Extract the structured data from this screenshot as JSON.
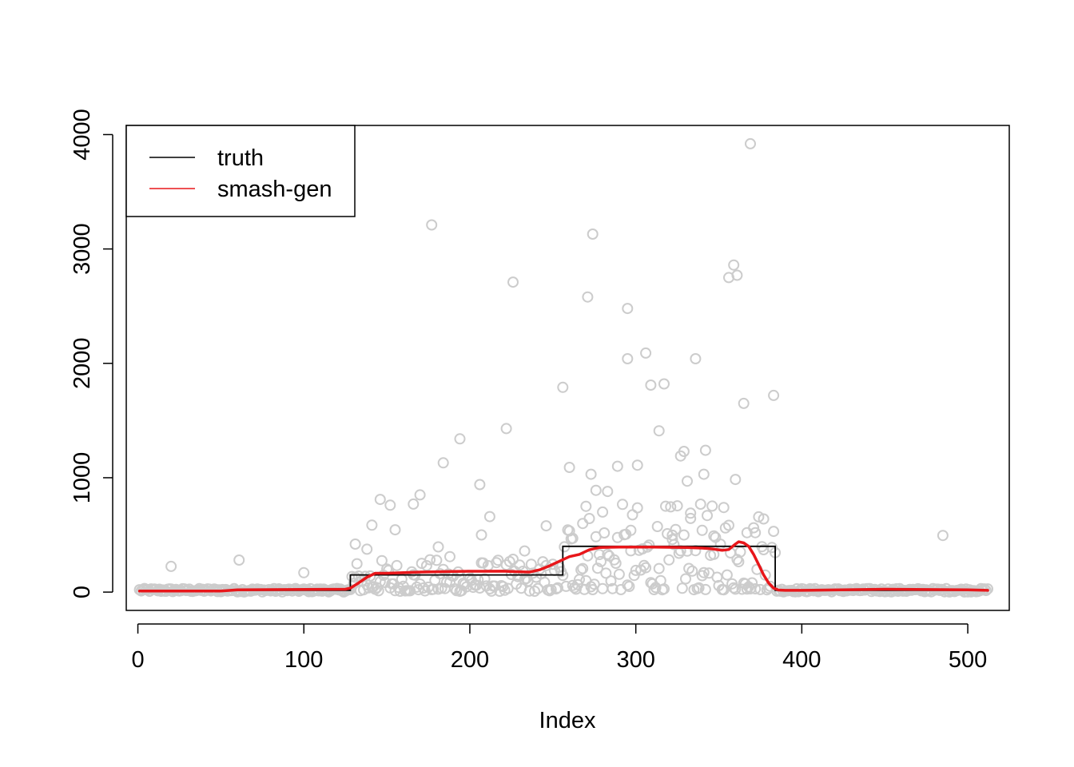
{
  "chart_data": {
    "type": "scatter",
    "title": "",
    "xlabel": "Index",
    "ylabel": "",
    "xlim": [
      -7,
      525
    ],
    "ylim": [
      -160,
      4080
    ],
    "x_ticks": [
      0,
      100,
      200,
      300,
      400,
      500
    ],
    "y_ticks": [
      0,
      1000,
      2000,
      3000,
      4000
    ],
    "x_tick_labels": [
      "0",
      "100",
      "200",
      "300",
      "400",
      "500"
    ],
    "y_tick_labels": [
      "0",
      "1000",
      "2000",
      "3000",
      "4000"
    ],
    "grid": false,
    "legend_position": "top-left",
    "legend": [
      {
        "label": "truth",
        "color": "#000000"
      },
      {
        "label": "smash-gen",
        "color": "#e8161a"
      }
    ],
    "colors": {
      "points": "#cccccc",
      "truth": "#000000",
      "smash": "#e8161a"
    },
    "truth_segments": [
      {
        "x": [
          1,
          128
        ],
        "y": 15
      },
      {
        "x": [
          129,
          256
        ],
        "y": 150
      },
      {
        "x": [
          257,
          384
        ],
        "y": 400
      },
      {
        "x": [
          385,
          512
        ],
        "y": 15
      }
    ],
    "smash_gen": {
      "x": [
        1,
        50,
        60,
        125,
        128,
        133,
        138,
        143,
        150,
        160,
        170,
        180,
        190,
        200,
        210,
        220,
        230,
        236,
        242,
        248,
        254,
        260,
        266,
        272,
        278,
        290,
        300,
        310,
        320,
        330,
        340,
        346,
        352,
        356,
        360,
        362,
        365,
        368,
        371,
        374,
        377,
        380,
        383,
        386,
        390,
        400,
        450,
        500,
        512
      ],
      "y": [
        10,
        10,
        20,
        25,
        35,
        80,
        130,
        165,
        165,
        170,
        175,
        178,
        180,
        182,
        182,
        183,
        178,
        175,
        195,
        230,
        270,
        310,
        330,
        370,
        390,
        393,
        393,
        393,
        392,
        390,
        385,
        378,
        365,
        372,
        420,
        440,
        430,
        400,
        330,
        240,
        150,
        80,
        35,
        18,
        15,
        15,
        25,
        20,
        15
      ]
    },
    "outliers": [
      {
        "x": 20,
        "y": 225
      },
      {
        "x": 61,
        "y": 280
      },
      {
        "x": 100,
        "y": 170
      },
      {
        "x": 131,
        "y": 420
      },
      {
        "x": 138,
        "y": 375
      },
      {
        "x": 141,
        "y": 585
      },
      {
        "x": 146,
        "y": 810
      },
      {
        "x": 152,
        "y": 760
      },
      {
        "x": 155,
        "y": 545
      },
      {
        "x": 166,
        "y": 770
      },
      {
        "x": 170,
        "y": 850
      },
      {
        "x": 177,
        "y": 3210
      },
      {
        "x": 181,
        "y": 395
      },
      {
        "x": 184,
        "y": 1130
      },
      {
        "x": 188,
        "y": 310
      },
      {
        "x": 194,
        "y": 1340
      },
      {
        "x": 206,
        "y": 940
      },
      {
        "x": 207,
        "y": 500
      },
      {
        "x": 212,
        "y": 660
      },
      {
        "x": 222,
        "y": 1430
      },
      {
        "x": 226,
        "y": 2710
      },
      {
        "x": 233,
        "y": 360
      },
      {
        "x": 246,
        "y": 580
      },
      {
        "x": 256,
        "y": 1790
      },
      {
        "x": 260,
        "y": 1090
      },
      {
        "x": 262,
        "y": 470
      },
      {
        "x": 268,
        "y": 600
      },
      {
        "x": 270,
        "y": 750
      },
      {
        "x": 271,
        "y": 2580
      },
      {
        "x": 273,
        "y": 1030
      },
      {
        "x": 274,
        "y": 3130
      },
      {
        "x": 276,
        "y": 890
      },
      {
        "x": 280,
        "y": 700
      },
      {
        "x": 283,
        "y": 880
      },
      {
        "x": 289,
        "y": 1100
      },
      {
        "x": 295,
        "y": 2040
      },
      {
        "x": 295,
        "y": 2480
      },
      {
        "x": 297,
        "y": 540
      },
      {
        "x": 301,
        "y": 1110
      },
      {
        "x": 306,
        "y": 2090
      },
      {
        "x": 309,
        "y": 1810
      },
      {
        "x": 314,
        "y": 1410
      },
      {
        "x": 317,
        "y": 1820
      },
      {
        "x": 322,
        "y": 460
      },
      {
        "x": 327,
        "y": 1190
      },
      {
        "x": 329,
        "y": 1230
      },
      {
        "x": 331,
        "y": 970
      },
      {
        "x": 333,
        "y": 690
      },
      {
        "x": 336,
        "y": 2040
      },
      {
        "x": 340,
        "y": 540
      },
      {
        "x": 341,
        "y": 1030
      },
      {
        "x": 342,
        "y": 1240
      },
      {
        "x": 347,
        "y": 330
      },
      {
        "x": 353,
        "y": 740
      },
      {
        "x": 356,
        "y": 2750
      },
      {
        "x": 359,
        "y": 2860
      },
      {
        "x": 360,
        "y": 985
      },
      {
        "x": 361,
        "y": 2770
      },
      {
        "x": 365,
        "y": 1650
      },
      {
        "x": 367,
        "y": 520
      },
      {
        "x": 369,
        "y": 3920
      },
      {
        "x": 372,
        "y": 520
      },
      {
        "x": 377,
        "y": 640
      },
      {
        "x": 383,
        "y": 1720
      },
      {
        "x": 485,
        "y": 495
      }
    ]
  }
}
